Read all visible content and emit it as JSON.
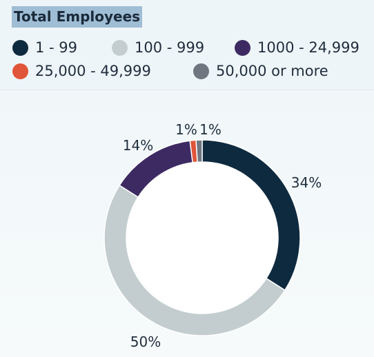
{
  "chart_data": {
    "type": "pie",
    "title": "Total Employees",
    "donut": true,
    "legend_position": "top",
    "categories": [
      "1 - 99",
      "100 - 999",
      "1000 - 24,999",
      "25,000 - 49,999",
      "50,000 or more"
    ],
    "values": [
      34,
      50,
      14,
      1,
      1
    ],
    "labels": [
      "34%",
      "50%",
      "14%",
      "1%",
      "1%"
    ],
    "colors": [
      "#0e2a3f",
      "#c3cdcf",
      "#3d2a63",
      "#e0553a",
      "#6f7680"
    ]
  }
}
